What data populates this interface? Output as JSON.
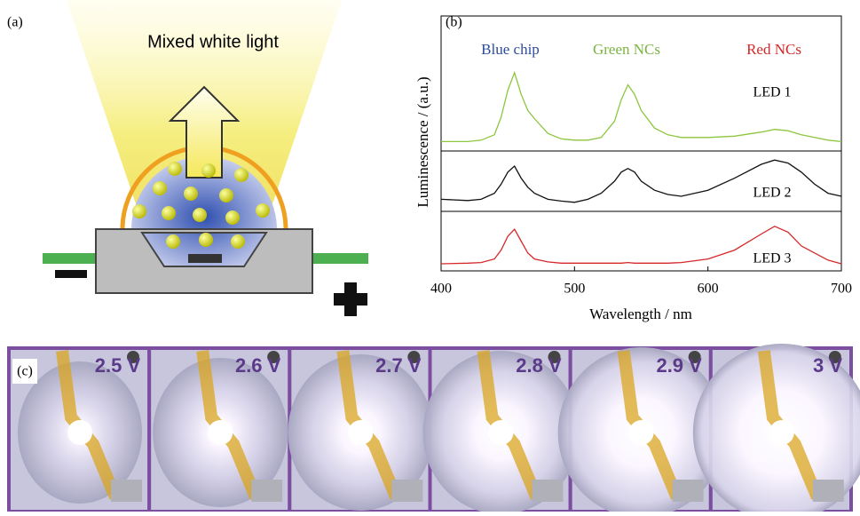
{
  "panel_a": {
    "label": "(a)",
    "caption": "Mixed white light"
  },
  "chart_data": {
    "type": "line",
    "label": "(b)",
    "xlabel": "Wavelength / nm",
    "ylabel": "Luminescence / (a.u.)",
    "xlim": [
      400,
      700
    ],
    "xticks": [
      400,
      500,
      600,
      700
    ],
    "ylim": [
      0,
      1
    ],
    "annotations": [
      {
        "text": "Blue chip",
        "color": "#2b4c9b"
      },
      {
        "text": "Green NCs",
        "color": "#7cb342"
      },
      {
        "text": "Red NCs",
        "color": "#d62728"
      }
    ],
    "x": [
      400,
      420,
      430,
      440,
      445,
      450,
      455,
      460,
      465,
      470,
      480,
      490,
      500,
      510,
      520,
      530,
      535,
      540,
      545,
      550,
      560,
      570,
      580,
      600,
      620,
      640,
      650,
      660,
      670,
      680,
      690,
      700
    ],
    "series": [
      {
        "name": "LED 1",
        "color": "#8dc63f",
        "values": [
          0.07,
          0.07,
          0.08,
          0.12,
          0.25,
          0.45,
          0.58,
          0.42,
          0.3,
          0.24,
          0.13,
          0.09,
          0.08,
          0.08,
          0.1,
          0.22,
          0.38,
          0.49,
          0.42,
          0.3,
          0.17,
          0.12,
          0.1,
          0.1,
          0.11,
          0.14,
          0.16,
          0.15,
          0.12,
          0.1,
          0.08,
          0.07
        ]
      },
      {
        "name": "LED 2",
        "color": "#111111",
        "values": [
          0.2,
          0.18,
          0.2,
          0.3,
          0.45,
          0.65,
          0.75,
          0.55,
          0.4,
          0.3,
          0.2,
          0.17,
          0.15,
          0.2,
          0.3,
          0.5,
          0.65,
          0.71,
          0.65,
          0.5,
          0.35,
          0.28,
          0.25,
          0.35,
          0.55,
          0.78,
          0.85,
          0.8,
          0.65,
          0.45,
          0.3,
          0.25
        ]
      },
      {
        "name": "LED 3",
        "color": "#d62728",
        "values": [
          0.12,
          0.13,
          0.14,
          0.2,
          0.35,
          0.58,
          0.7,
          0.5,
          0.3,
          0.2,
          0.15,
          0.13,
          0.13,
          0.13,
          0.13,
          0.13,
          0.13,
          0.14,
          0.13,
          0.13,
          0.13,
          0.13,
          0.14,
          0.2,
          0.35,
          0.62,
          0.75,
          0.65,
          0.42,
          0.3,
          0.18,
          0.12
        ]
      }
    ]
  },
  "panel_c": {
    "label": "(c)",
    "voltages": [
      "2.5 V",
      "2.6 V",
      "2.7 V",
      "2.8 V",
      "2.9 V",
      "3 V"
    ]
  }
}
